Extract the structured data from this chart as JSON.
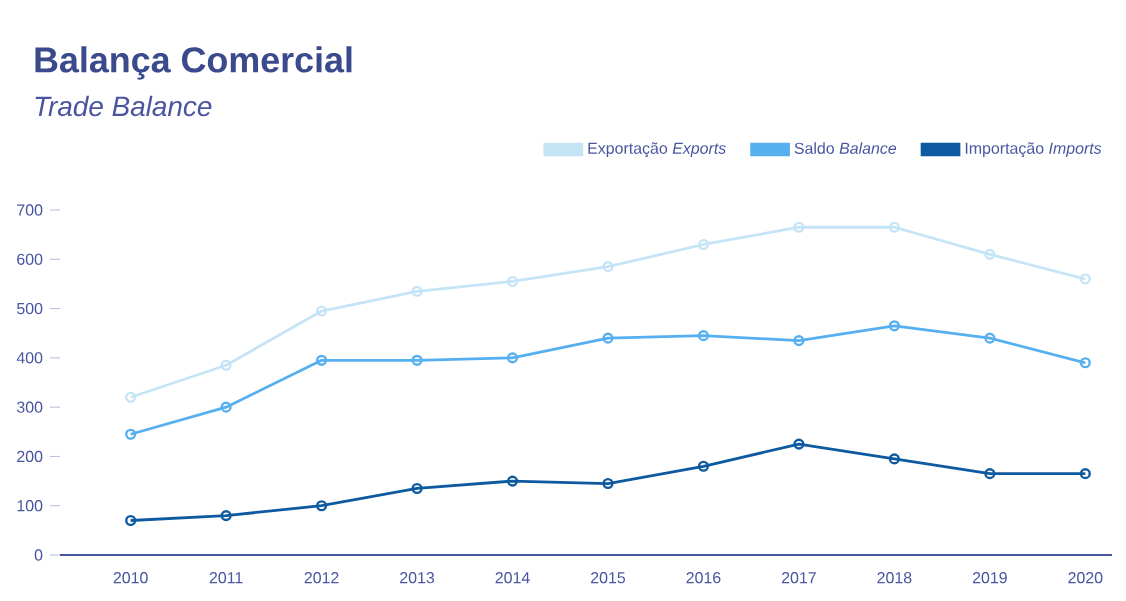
{
  "chart_data": {
    "type": "line",
    "title": "Balança Comercial",
    "subtitle": "Trade Balance",
    "categories": [
      "2010",
      "2011",
      "2012",
      "2013",
      "2014",
      "2015",
      "2016",
      "2017",
      "2018",
      "2019",
      "2020"
    ],
    "series": [
      {
        "name": "Exportação *Exports*",
        "color": "#c5e5f7",
        "values": [
          320,
          385,
          495,
          535,
          555,
          585,
          630,
          665,
          665,
          610,
          560
        ]
      },
      {
        "name": "Saldo *Balance*",
        "color": "#56b0f0",
        "values": [
          245,
          300,
          395,
          395,
          400,
          440,
          445,
          435,
          465,
          440,
          390
        ]
      },
      {
        "name": "Importação *Imports*",
        "color": "#0d5aa0",
        "values": [
          70,
          80,
          100,
          135,
          150,
          145,
          180,
          225,
          195,
          165,
          165
        ]
      }
    ],
    "ylim": [
      0,
      700
    ],
    "yticks": [
      0,
      100,
      200,
      300,
      400,
      500,
      600,
      700
    ],
    "legend": "top right",
    "marker": "circle",
    "line_style": "solid",
    "grid": false
  }
}
